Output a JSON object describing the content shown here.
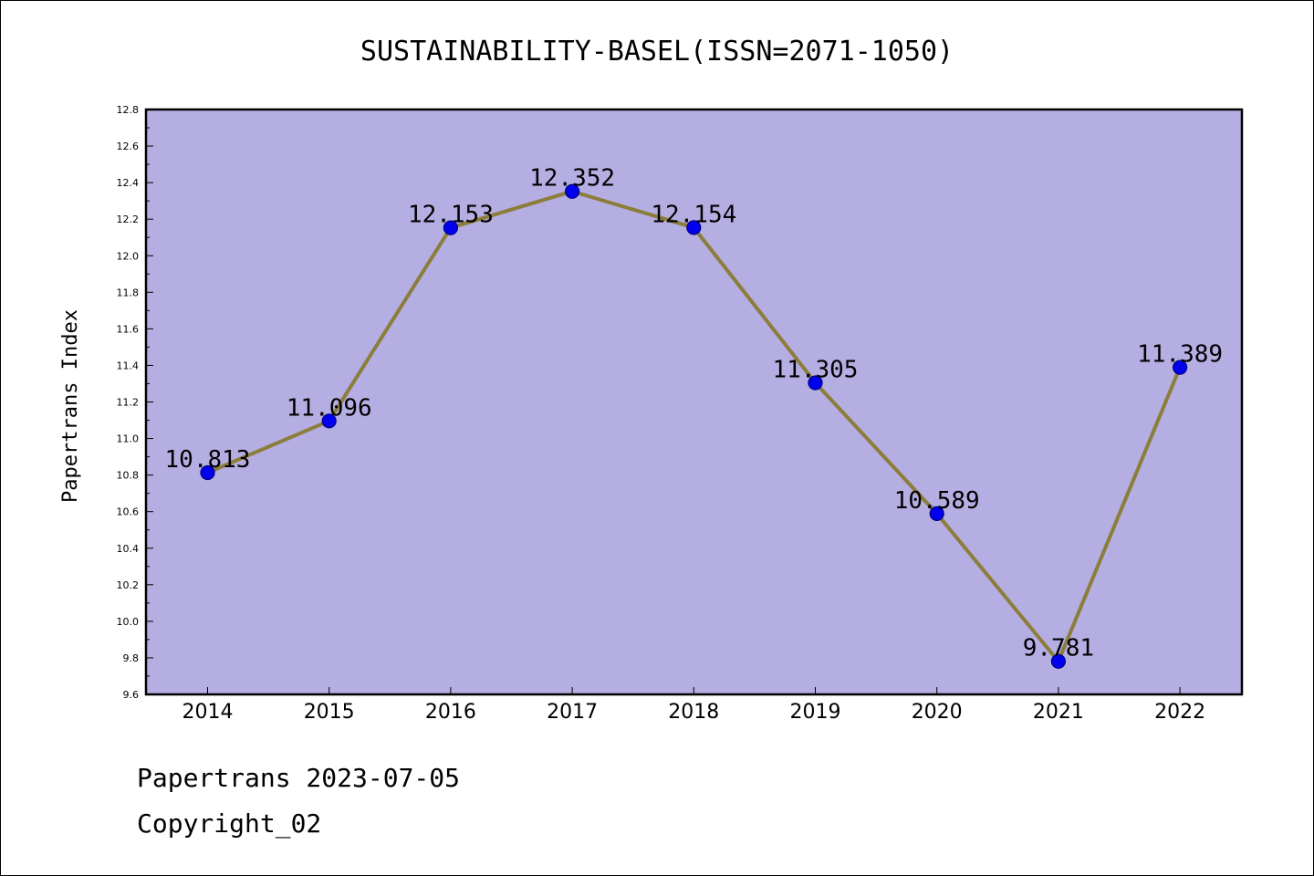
{
  "chart_data": {
    "type": "line",
    "title": "SUSTAINABILITY-BASEL(ISSN=2071-1050)",
    "xlabel": "",
    "ylabel": "Papertrans Index",
    "categories": [
      "2014",
      "2015",
      "2016",
      "2017",
      "2018",
      "2019",
      "2020",
      "2021",
      "2022"
    ],
    "values": [
      10.813,
      11.096,
      12.153,
      12.352,
      12.154,
      11.305,
      10.589,
      9.781,
      11.389
    ],
    "data_labels": [
      "10.813",
      "11.096",
      "12.153",
      "12.352",
      "12.154",
      "11.305",
      "10.589",
      "9.781",
      "11.389"
    ],
    "ylim": [
      9.6,
      12.8
    ],
    "yticks": [
      "9.6",
      "9.8",
      "10.0",
      "10.2",
      "10.4",
      "10.6",
      "10.8",
      "11.0",
      "11.2",
      "11.4",
      "11.6",
      "11.8",
      "12.0",
      "12.2",
      "12.4",
      "12.6",
      "12.8"
    ],
    "grid": false,
    "legend": "none",
    "colors": {
      "plot_background": "#b5aee2",
      "line": "#8b7d3a",
      "marker_fill": "#0000ee",
      "marker_edge": "#000080"
    }
  },
  "footer": {
    "line1": "Papertrans 2023-07-05",
    "line2": "Copyright_02"
  }
}
